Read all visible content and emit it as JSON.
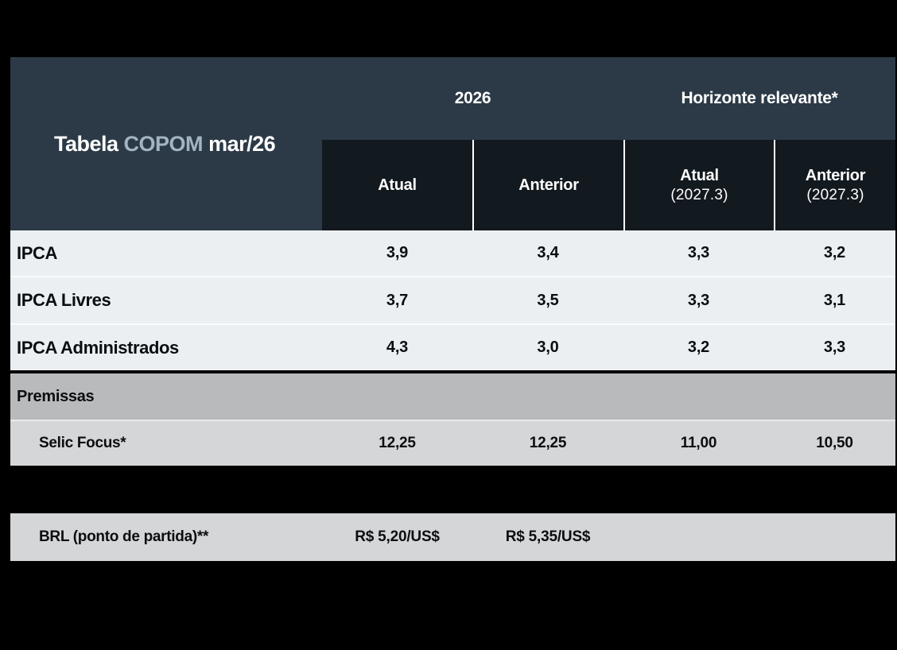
{
  "title": {
    "part1": "Tabela ",
    "part2": "COPOM",
    "part3": " mar/26"
  },
  "header": {
    "group_2026": "2026",
    "group_horizonte": "Horizonte relevante*",
    "columns": [
      {
        "line1": "Atual",
        "line2": ""
      },
      {
        "line1": "Anterior",
        "line2": ""
      },
      {
        "line1": "Atual",
        "line2": "(2027.3)"
      },
      {
        "line1": "Anterior",
        "line2": "(2027.3)"
      }
    ]
  },
  "rows": [
    {
      "label": "IPCA",
      "values": [
        "3,9",
        "3,4",
        "3,3",
        "3,2"
      ]
    },
    {
      "label": "IPCA Livres",
      "values": [
        "3,7",
        "3,5",
        "3,3",
        "3,1"
      ]
    },
    {
      "label": "IPCA Administrados",
      "values": [
        "4,3",
        "3,0",
        "3,2",
        "3,3"
      ]
    }
  ],
  "premissas": {
    "section_label": "Premissas",
    "selic": {
      "label": "Selic Focus*",
      "values": [
        "12,25",
        "12,25",
        "11,00",
        "10,50"
      ]
    },
    "brl": {
      "label": "BRL (ponto de partida)**",
      "values": [
        "R$ 5,20/US$",
        "R$ 5,35/US$",
        "",
        ""
      ]
    }
  },
  "colors": {
    "background": "#000000",
    "header_slate": "#2C3A47",
    "header_dark": "#12191F",
    "copom_accent": "#A3B5C2",
    "row_light": "#ECEFF1",
    "section_gray": "#B9BABB",
    "premissa_row_gray": "#D5D6D7",
    "text_dark": "#0B0E11",
    "text_white": "#FFFFFF"
  },
  "chart_data": {
    "type": "table",
    "title": "Tabela COPOM mar/26",
    "column_groups": [
      {
        "label": "2026",
        "spans": [
          "Atual",
          "Anterior"
        ]
      },
      {
        "label": "Horizonte relevante*",
        "spans": [
          "Atual (2027.3)",
          "Anterior (2027.3)"
        ]
      }
    ],
    "columns": [
      "",
      "Atual",
      "Anterior",
      "Atual (2027.3)",
      "Anterior (2027.3)"
    ],
    "rows": [
      [
        "IPCA",
        "3,9",
        "3,4",
        "3,3",
        "3,2"
      ],
      [
        "IPCA Livres",
        "3,7",
        "3,5",
        "3,3",
        "3,1"
      ],
      [
        "IPCA Administrados",
        "4,3",
        "3,0",
        "3,2",
        "3,3"
      ],
      [
        "Premissas",
        "",
        "",
        "",
        ""
      ],
      [
        "Selic Focus*",
        "12,25",
        "12,25",
        "11,00",
        "10,50"
      ],
      [
        "BRL (ponto de partida)**",
        "R$ 5,20/US$",
        "R$ 5,35/US$",
        "",
        ""
      ]
    ]
  }
}
